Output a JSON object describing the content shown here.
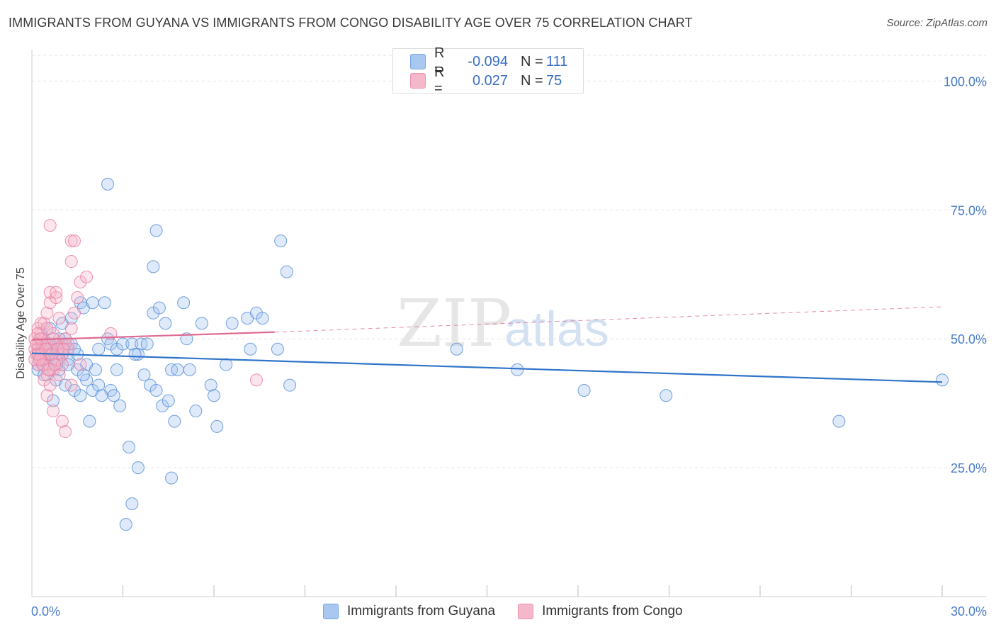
{
  "header": {
    "title": "IMMIGRANTS FROM GUYANA VS IMMIGRANTS FROM CONGO DISABILITY AGE OVER 75 CORRELATION CHART",
    "source": "Source: ZipAtlas.com"
  },
  "watermark": {
    "zip": "ZIP",
    "atlas": "atlas"
  },
  "legend": {
    "rows": [
      {
        "r_label": "R =",
        "r_value": "-0.094",
        "n_label": "N =",
        "n_value": "111",
        "color": "#a9c8ef"
      },
      {
        "r_label": "R =",
        "r_value": "0.027",
        "n_label": "N =",
        "n_value": "75",
        "color": "#f5b8cb"
      }
    ]
  },
  "bottom_legend": [
    {
      "label": "Immigrants from Guyana",
      "color": "#a9c8ef"
    },
    {
      "label": "Immigrants from Congo",
      "color": "#f5b8cb"
    }
  ],
  "chart_data": {
    "type": "scatter",
    "title": "IMMIGRANTS FROM GUYANA VS IMMIGRANTS FROM CONGO DISABILITY AGE OVER 75 CORRELATION CHART",
    "xlabel": "",
    "ylabel": "Disability Age Over 75",
    "xlim": [
      0,
      30
    ],
    "ylim": [
      0,
      105
    ],
    "x_tick_labels": [
      "0.0%",
      "30.0%"
    ],
    "y_ticks": [
      25,
      50,
      75,
      100
    ],
    "y_tick_labels": [
      "25.0%",
      "50.0%",
      "75.0%",
      "100.0%"
    ],
    "grid": true,
    "series": [
      {
        "name": "Immigrants from Guyana",
        "color": "#5b8fd6",
        "fill": "rgba(160,195,240,0.35)",
        "trend": {
          "x": [
            0,
            30
          ],
          "y": [
            47.2,
            41.6
          ],
          "color": "#2f74c9",
          "dashed_from": null
        },
        "points": [
          [
            0.2,
            47
          ],
          [
            0.3,
            48
          ],
          [
            0.2,
            45
          ],
          [
            0.4,
            46
          ],
          [
            0.3,
            49
          ],
          [
            0.5,
            47
          ],
          [
            0.6,
            48
          ],
          [
            0.4,
            50
          ],
          [
            0.7,
            46
          ],
          [
            0.8,
            49
          ],
          [
            0.2,
            44
          ],
          [
            0.5,
            45
          ],
          [
            0.9,
            47
          ],
          [
            1.0,
            48
          ],
          [
            1.1,
            50
          ],
          [
            0.6,
            52
          ],
          [
            0.9,
            44
          ],
          [
            1.2,
            46
          ],
          [
            1.3,
            49
          ],
          [
            1.5,
            47
          ],
          [
            0.4,
            43
          ],
          [
            0.8,
            42
          ],
          [
            1.1,
            41
          ],
          [
            1.4,
            40
          ],
          [
            1.6,
            39
          ],
          [
            1.8,
            42
          ],
          [
            2.0,
            40
          ],
          [
            2.2,
            41
          ],
          [
            2.6,
            40
          ],
          [
            2.8,
            44
          ],
          [
            1.0,
            53
          ],
          [
            1.3,
            54
          ],
          [
            1.6,
            57
          ],
          [
            1.7,
            56
          ],
          [
            2.0,
            57
          ],
          [
            2.4,
            57
          ],
          [
            2.5,
            50
          ],
          [
            2.6,
            49
          ],
          [
            2.8,
            48
          ],
          [
            3.0,
            49
          ],
          [
            3.3,
            49
          ],
          [
            3.6,
            49
          ],
          [
            3.8,
            49
          ],
          [
            4.0,
            55
          ],
          [
            4.2,
            56
          ],
          [
            4.4,
            53
          ],
          [
            3.5,
            47
          ],
          [
            3.7,
            43
          ],
          [
            3.9,
            41
          ],
          [
            4.1,
            40
          ],
          [
            4.3,
            37
          ],
          [
            4.5,
            38
          ],
          [
            4.6,
            44
          ],
          [
            4.8,
            44
          ],
          [
            5.0,
            57
          ],
          [
            5.1,
            50
          ],
          [
            5.2,
            44
          ],
          [
            5.4,
            36
          ],
          [
            5.6,
            53
          ],
          [
            5.9,
            41
          ],
          [
            6.0,
            39
          ],
          [
            6.1,
            33
          ],
          [
            6.4,
            45
          ],
          [
            6.6,
            53
          ],
          [
            7.1,
            54
          ],
          [
            7.2,
            48
          ],
          [
            7.4,
            55
          ],
          [
            7.6,
            54
          ],
          [
            8.1,
            48
          ],
          [
            8.5,
            41
          ],
          [
            0.7,
            38
          ],
          [
            1.9,
            34
          ],
          [
            2.9,
            37
          ],
          [
            3.2,
            29
          ],
          [
            3.5,
            25
          ],
          [
            4.7,
            34
          ],
          [
            4.6,
            23
          ],
          [
            3.3,
            18
          ],
          [
            3.1,
            14
          ],
          [
            2.5,
            80
          ],
          [
            4.1,
            71
          ],
          [
            4.0,
            64
          ],
          [
            8.2,
            69
          ],
          [
            8.4,
            63
          ],
          [
            14.0,
            48
          ],
          [
            16.0,
            44
          ],
          [
            18.2,
            40
          ],
          [
            20.9,
            39
          ],
          [
            26.6,
            34
          ],
          [
            30.0,
            42
          ],
          [
            0.3,
            48
          ],
          [
            0.5,
            49
          ],
          [
            0.6,
            47
          ],
          [
            0.7,
            48
          ],
          [
            1.2,
            45
          ],
          [
            1.4,
            48
          ],
          [
            1.8,
            45
          ],
          [
            2.1,
            44
          ],
          [
            2.3,
            39
          ],
          [
            2.7,
            39
          ],
          [
            0.4,
            46
          ],
          [
            0.8,
            45
          ],
          [
            1.0,
            47
          ],
          [
            1.5,
            44
          ],
          [
            2.2,
            48
          ],
          [
            0.9,
            50
          ],
          [
            1.7,
            43
          ],
          [
            3.4,
            47
          ],
          [
            0.6,
            49
          ],
          [
            0.3,
            47
          ],
          [
            1.1,
            49
          ]
        ]
      },
      {
        "name": "Immigrants from Congo",
        "color": "#e87fa1",
        "fill": "rgba(245,180,200,0.35)",
        "trend": {
          "x": [
            0,
            8
          ],
          "y": [
            49.8,
            51.3
          ],
          "color": "#e06b93",
          "dashed_to": [
            30,
            56.2
          ]
        },
        "points": [
          [
            0.1,
            48
          ],
          [
            0.2,
            49
          ],
          [
            0.15,
            47
          ],
          [
            0.25,
            50
          ],
          [
            0.3,
            46
          ],
          [
            0.2,
            45
          ],
          [
            0.1,
            50
          ],
          [
            0.35,
            48
          ],
          [
            0.4,
            49
          ],
          [
            0.3,
            51
          ],
          [
            0.2,
            52
          ],
          [
            0.4,
            53
          ],
          [
            0.5,
            55
          ],
          [
            0.6,
            57
          ],
          [
            0.6,
            59
          ],
          [
            0.8,
            58
          ],
          [
            0.9,
            54
          ],
          [
            0.7,
            51
          ],
          [
            0.5,
            47
          ],
          [
            0.9,
            48
          ],
          [
            1.0,
            49
          ],
          [
            1.1,
            50
          ],
          [
            1.2,
            48
          ],
          [
            1.3,
            52
          ],
          [
            1.4,
            55
          ],
          [
            1.5,
            58
          ],
          [
            1.6,
            61
          ],
          [
            1.8,
            62
          ],
          [
            1.3,
            65
          ],
          [
            1.3,
            69
          ],
          [
            1.4,
            69
          ],
          [
            0.6,
            72
          ],
          [
            0.8,
            59
          ],
          [
            0.4,
            42
          ],
          [
            0.5,
            43
          ],
          [
            0.6,
            41
          ],
          [
            0.7,
            44
          ],
          [
            0.9,
            43
          ],
          [
            0.5,
            39
          ],
          [
            0.7,
            36
          ],
          [
            1.0,
            34
          ],
          [
            1.1,
            32
          ],
          [
            1.3,
            41
          ],
          [
            1.6,
            45
          ],
          [
            2.6,
            51
          ],
          [
            7.4,
            42
          ],
          [
            0.2,
            48
          ],
          [
            0.3,
            47
          ],
          [
            0.4,
            46
          ],
          [
            0.6,
            48
          ],
          [
            0.8,
            49
          ],
          [
            1.0,
            47
          ],
          [
            0.1,
            46
          ],
          [
            0.3,
            50
          ],
          [
            0.5,
            49
          ],
          [
            0.7,
            50
          ],
          [
            0.9,
            46
          ],
          [
            1.2,
            49
          ],
          [
            0.2,
            51
          ],
          [
            0.4,
            45
          ],
          [
            0.6,
            44
          ],
          [
            0.8,
            46
          ],
          [
            1.0,
            45
          ],
          [
            0.3,
            53
          ],
          [
            0.5,
            52
          ],
          [
            0.2,
            47
          ],
          [
            0.15,
            49
          ],
          [
            0.45,
            48
          ],
          [
            0.65,
            47
          ],
          [
            0.85,
            48
          ],
          [
            0.35,
            45
          ],
          [
            0.55,
            44
          ],
          [
            1.05,
            48
          ],
          [
            0.25,
            46
          ],
          [
            0.75,
            45
          ]
        ]
      }
    ]
  }
}
